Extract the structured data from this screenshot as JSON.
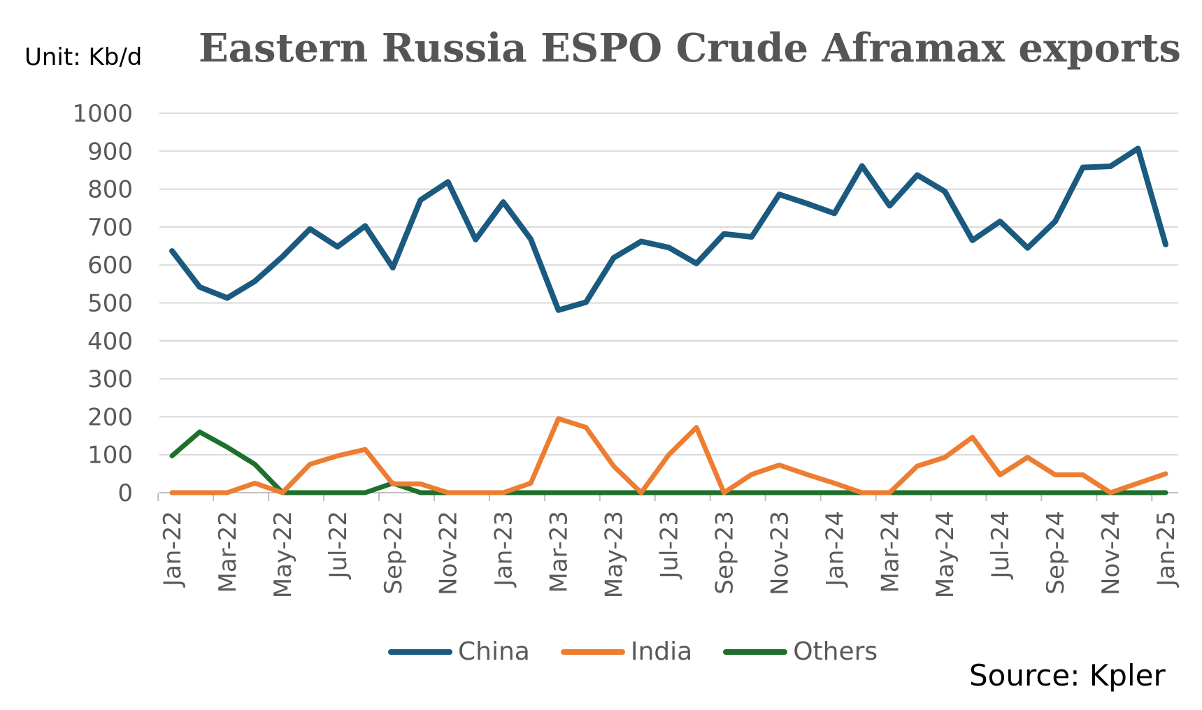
{
  "unit_label": "Unit: Kb/d",
  "title": "Eastern Russia ESPO Crude Aframax exports",
  "source": "Source: Kpler",
  "chart_data": {
    "type": "line",
    "title": "Eastern Russia ESPO Crude Aframax exports",
    "ylabel": "",
    "xlabel": "",
    "ylim": [
      0,
      1000
    ],
    "yticks": [
      0,
      100,
      200,
      300,
      400,
      500,
      600,
      700,
      800,
      900,
      1000
    ],
    "grid": true,
    "legend_position": "bottom",
    "x": [
      "Jan-22",
      "Feb-22",
      "Mar-22",
      "Apr-22",
      "May-22",
      "Jun-22",
      "Jul-22",
      "Aug-22",
      "Sep-22",
      "Oct-22",
      "Nov-22",
      "Dec-22",
      "Jan-23",
      "Feb-23",
      "Mar-23",
      "Apr-23",
      "May-23",
      "Jun-23",
      "Jul-23",
      "Aug-23",
      "Sep-23",
      "Oct-23",
      "Nov-23",
      "Dec-23",
      "Jan-24",
      "Feb-24",
      "Mar-24",
      "Apr-24",
      "May-24",
      "Jun-24",
      "Jul-24",
      "Aug-24",
      "Sep-24",
      "Oct-24",
      "Nov-24",
      "Dec-24",
      "Jan-25"
    ],
    "xtick_labels": [
      "Jan-22",
      "Mar-22",
      "May-22",
      "Jul-22",
      "Sep-22",
      "Nov-22",
      "Jan-23",
      "Mar-23",
      "May-23",
      "Jul-23",
      "Sep-23",
      "Nov-23",
      "Jan-24",
      "Mar-24",
      "May-24",
      "Jul-24",
      "Sep-24",
      "Nov-24",
      "Jan-25"
    ],
    "series": [
      {
        "name": "China",
        "color": "#1b5a7f",
        "values": [
          637,
          542,
          513,
          557,
          622,
          695,
          648,
          703,
          593,
          771,
          819,
          667,
          766,
          668,
          481,
          502,
          619,
          662,
          646,
          604,
          682,
          674,
          786,
          762,
          736,
          861,
          756,
          837,
          794,
          665,
          715,
          645,
          715,
          857,
          860,
          907,
          654
        ]
      },
      {
        "name": "India",
        "color": "#ed7d31",
        "values": [
          0,
          0,
          0,
          25,
          0,
          75,
          97,
          114,
          23,
          23,
          0,
          0,
          0,
          25,
          195,
          172,
          70,
          0,
          100,
          172,
          0,
          48,
          73,
          48,
          25,
          0,
          0,
          70,
          93,
          146,
          47,
          93,
          47,
          47,
          0,
          25,
          50
        ]
      },
      {
        "name": "Others",
        "color": "#1f6f2c",
        "values": [
          97,
          160,
          120,
          75,
          0,
          0,
          0,
          0,
          25,
          0,
          0,
          0,
          0,
          0,
          0,
          0,
          0,
          0,
          0,
          0,
          0,
          0,
          0,
          0,
          0,
          0,
          0,
          0,
          0,
          0,
          0,
          0,
          0,
          0,
          0,
          0,
          0
        ]
      }
    ]
  }
}
